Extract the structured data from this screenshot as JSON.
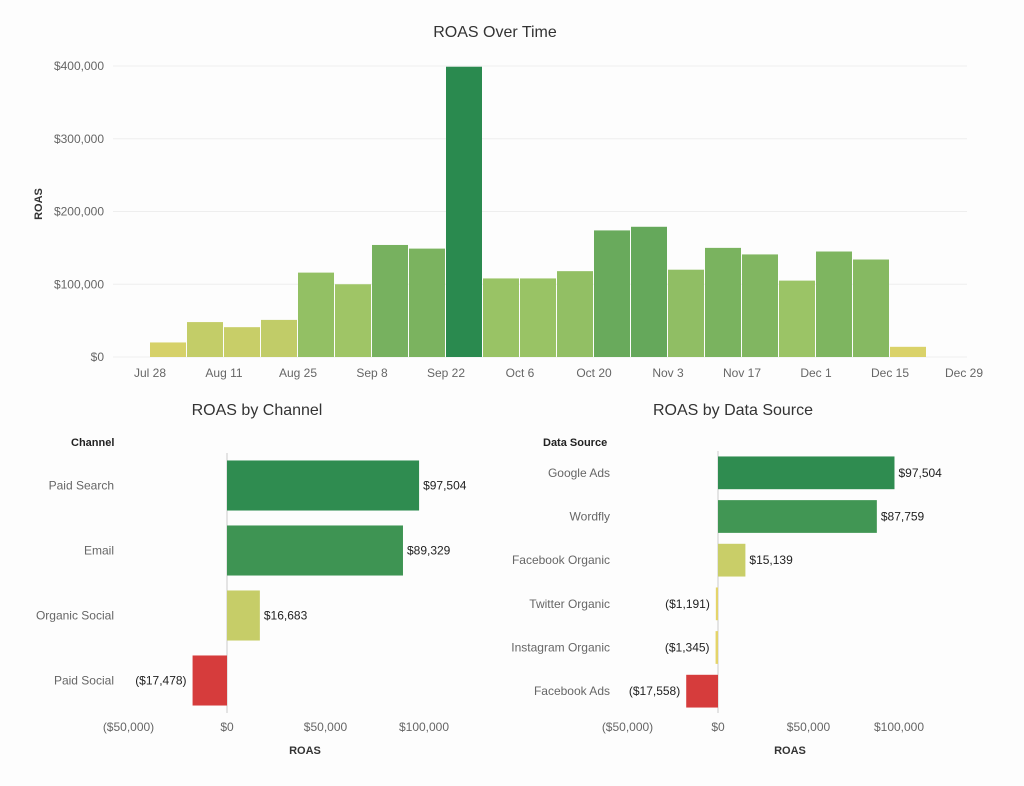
{
  "chart_data": [
    {
      "type": "bar",
      "title": "ROAS Over Time",
      "xlabel": "",
      "ylabel": "ROAS",
      "ylim": [
        0,
        400000
      ],
      "yticks": [
        "$0",
        "$100,000",
        "$200,000",
        "$300,000",
        "$400,000"
      ],
      "ytick_values": [
        0,
        100000,
        200000,
        300000,
        400000
      ],
      "xticks": [
        "Jul 28",
        "Aug 11",
        "Aug 25",
        "Sep 8",
        "Sep 22",
        "Oct 6",
        "Oct 20",
        "Nov 3",
        "Nov 17",
        "Dec 1",
        "Dec 15",
        "Dec 29"
      ],
      "categories": [
        "Jul 28",
        "Aug 4",
        "Aug 11",
        "Aug 18",
        "Aug 25",
        "Sep 1",
        "Sep 8",
        "Sep 15",
        "Sep 22",
        "Sep 29",
        "Oct 6",
        "Oct 13",
        "Oct 20",
        "Oct 27",
        "Nov 3",
        "Nov 10",
        "Nov 17",
        "Nov 24",
        "Dec 1",
        "Dec 8",
        "Dec 15"
      ],
      "values": [
        20000,
        48000,
        41000,
        51000,
        116000,
        100000,
        154000,
        149000,
        399000,
        108000,
        108000,
        118000,
        174000,
        179000,
        120000,
        150000,
        141000,
        105000,
        145000,
        134000,
        14000
      ],
      "grid": true
    },
    {
      "type": "bar",
      "orientation": "horizontal",
      "title": "ROAS by Channel",
      "header": "Channel",
      "xlabel": "ROAS",
      "xlim": [
        -60000,
        120000
      ],
      "xticks": [
        "($50,000)",
        "$0",
        "$50,000",
        "$100,000"
      ],
      "xtick_values": [
        -50000,
        0,
        50000,
        100000
      ],
      "categories": [
        "Paid Search",
        "Email",
        "Organic Social",
        "Paid Social"
      ],
      "values": [
        97504,
        89329,
        16683,
        -17478
      ],
      "labels": [
        "$97,504",
        "$89,329",
        "$16,683",
        "($17,478)"
      ]
    },
    {
      "type": "bar",
      "orientation": "horizontal",
      "title": "ROAS by Data Source",
      "header": "Data Source",
      "xlabel": "ROAS",
      "xlim": [
        -60000,
        130000
      ],
      "xticks": [
        "($50,000)",
        "$0",
        "$50,000",
        "$100,000"
      ],
      "xtick_values": [
        -50000,
        0,
        50000,
        100000
      ],
      "categories": [
        "Google Ads",
        "Wordfly",
        "Facebook Organic",
        "Twitter Organic",
        "Instagram Organic",
        "Facebook Ads"
      ],
      "values": [
        97504,
        87759,
        15139,
        -1191,
        -1345,
        -17558
      ],
      "labels": [
        "$97,504",
        "$87,759",
        "$15,139",
        "($1,191)",
        "($1,345)",
        "($17,558)"
      ]
    }
  ],
  "colors": {
    "high": "#2a8a4f",
    "mid": "#9cc466",
    "low": "#e4d46a",
    "negative": "#d63c3c",
    "grid": "#eeeeee"
  }
}
